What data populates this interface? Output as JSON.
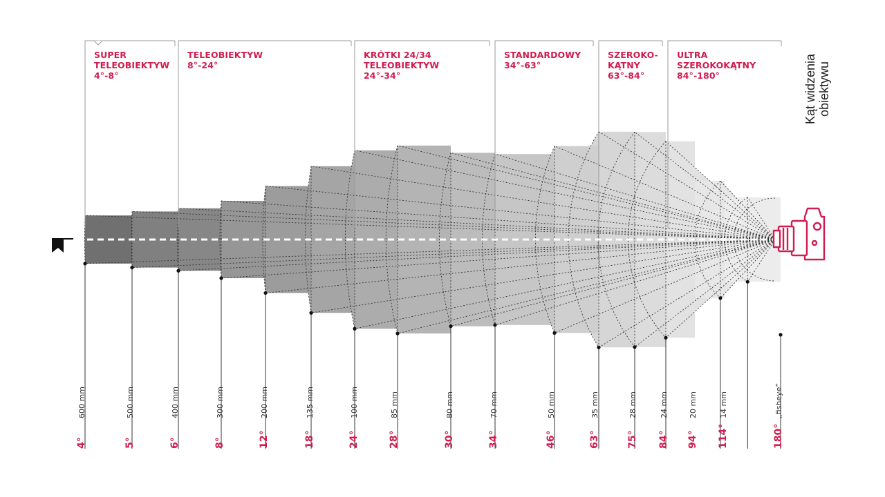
{
  "axis_title": [
    "Kąt widzenia",
    "obiektywu"
  ],
  "colors": {
    "accent": "#d01c4e",
    "line": "#333333",
    "tier_line": "#9a9a9a"
  },
  "icons": {
    "subject": "flag-icon",
    "camera": "camera-icon"
  },
  "categories": [
    {
      "lines": [
        "SUPER",
        "TELEOBIEKTYW",
        "4°-8°"
      ]
    },
    {
      "lines": [
        "TELEOBIEKTYW",
        "8°-24°"
      ]
    },
    {
      "lines": [
        "KRÓTKI 24/34",
        "TELEOBIEKTYW",
        "24°-34°"
      ]
    },
    {
      "lines": [
        "STANDARDOWY",
        "34°-63°"
      ]
    },
    {
      "lines": [
        "SZEROKO-",
        "KĄTNY",
        "63°-84°"
      ]
    },
    {
      "lines": [
        "ULTRA",
        "SZEROKOKĄTNY",
        "84°-180°"
      ]
    }
  ],
  "lenses": [
    {
      "angle": "4°",
      "angle_deg": 4,
      "focal": "600 mm"
    },
    {
      "angle": "5°",
      "angle_deg": 5,
      "focal": "500 mm"
    },
    {
      "angle": "6°",
      "angle_deg": 6,
      "focal": "400 mm"
    },
    {
      "angle": "8°",
      "angle_deg": 8,
      "focal": "300 mm"
    },
    {
      "angle": "12°",
      "angle_deg": 12,
      "focal": "200 mm"
    },
    {
      "angle": "18°",
      "angle_deg": 18,
      "focal": "135 mm"
    },
    {
      "angle": "24°",
      "angle_deg": 24,
      "focal": "100 mm"
    },
    {
      "angle": "28°",
      "angle_deg": 28,
      "focal": "85 mm"
    },
    {
      "angle": "30°",
      "angle_deg": 30,
      "focal": "80 mm"
    },
    {
      "angle": "34°",
      "angle_deg": 34,
      "focal": "70 mm"
    },
    {
      "angle": "46°",
      "angle_deg": 46,
      "focal": "50 mm"
    },
    {
      "angle": "63°",
      "angle_deg": 63,
      "focal": "35 mm"
    },
    {
      "angle": "75°",
      "angle_deg": 75,
      "focal": "28 mm"
    },
    {
      "angle": "84°",
      "angle_deg": 84,
      "focal": "24 mm"
    },
    {
      "angle": "94°",
      "angle_deg": 94,
      "focal": "20 mm"
    },
    {
      "angle": "114°",
      "angle_deg": 114,
      "focal": "14 mm"
    },
    {
      "angle": "180°",
      "angle_deg": 180,
      "focal": "„fisheye”"
    }
  ]
}
